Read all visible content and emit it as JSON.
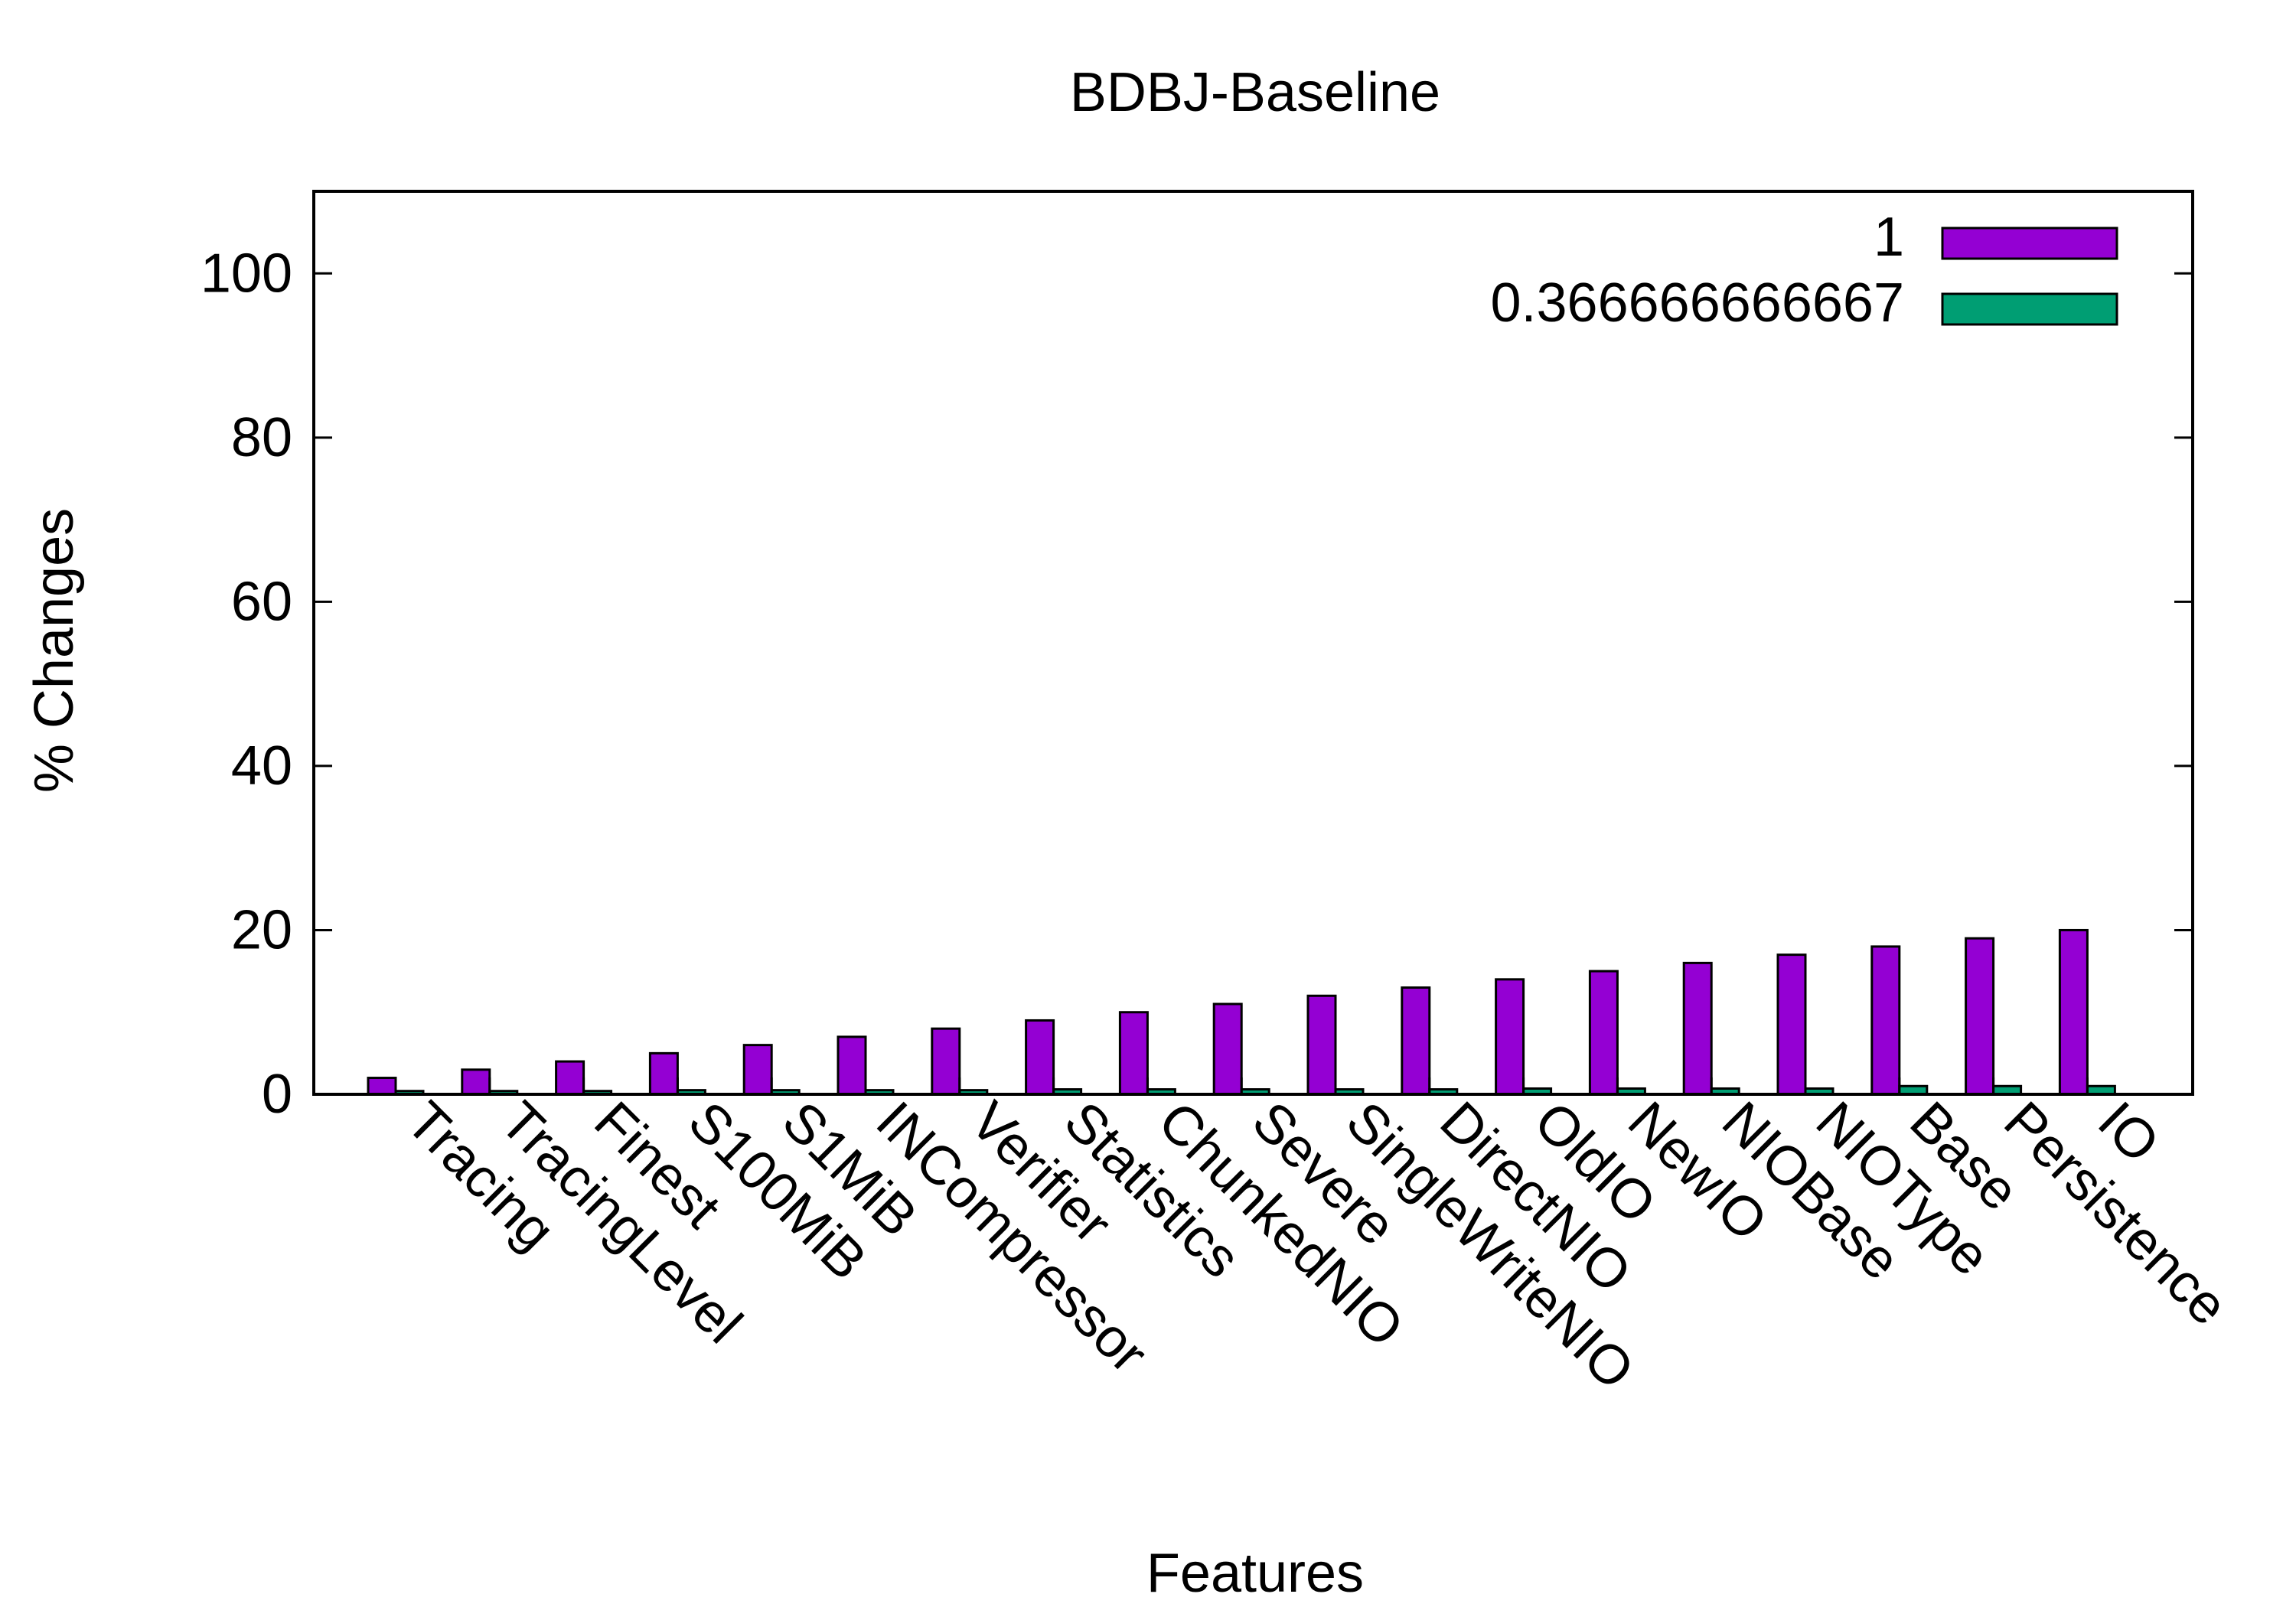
{
  "chart_data": {
    "type": "bar",
    "title": "BDBJ-Baseline",
    "xlabel": "Features",
    "ylabel": "% Changes",
    "ylim": [
      0,
      110
    ],
    "yticks": [
      0,
      20,
      40,
      60,
      80,
      100
    ],
    "grid": false,
    "legend_position": "top-right",
    "categories": [
      "Tracing",
      "TracingLevel",
      "Finest",
      "S100MiB",
      "S1MiB",
      "INCompressor",
      "Verifier",
      "Statistics",
      "ChunkedNIO",
      "Severe",
      "SingleWriteNIO",
      "DirectNIO",
      "OldIO",
      "NewIO",
      "NIOBase",
      "NIOType",
      "Base",
      "Persistence",
      "IO"
    ],
    "series": [
      {
        "name": "1",
        "color": "#9400D3",
        "values": [
          2,
          3,
          4,
          5,
          6,
          7,
          8,
          9,
          10,
          11,
          12,
          13,
          14,
          15,
          16,
          17,
          18,
          19,
          20
        ]
      },
      {
        "name": "0.366666666667",
        "color": "#009E73",
        "values": [
          0.4,
          0.4,
          0.4,
          0.5,
          0.5,
          0.5,
          0.5,
          0.6,
          0.6,
          0.6,
          0.6,
          0.6,
          0.7,
          0.7,
          0.7,
          0.7,
          1.0,
          1.0,
          1.0
        ]
      }
    ]
  }
}
